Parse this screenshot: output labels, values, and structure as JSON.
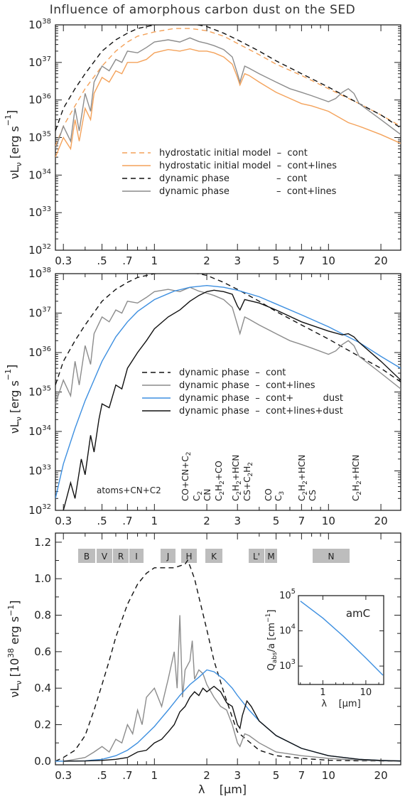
{
  "figure_title": "Influence of amorphous carbon dust on the SED",
  "colors": {
    "orange": "#f4a25a",
    "blue": "#3d8fe0",
    "gray": "#8c8c8c",
    "black": "#111111"
  },
  "chart_data": [
    {
      "type": "line",
      "panel": "top",
      "xscale": "log",
      "yscale": "log",
      "xlim": [
        0.27,
        26
      ],
      "ylim": [
        1e+32,
        1e+38
      ],
      "x_ticks": [
        "0.3",
        ".5",
        ".7",
        "1",
        "2",
        "3",
        "5",
        "7",
        "10",
        "20"
      ],
      "y_ticks": [
        "10^32",
        "10^33",
        "10^34",
        "10^35",
        "10^36",
        "10^37",
        "10^38"
      ],
      "ylabel": "νL_ν [erg s^-1]",
      "series": [
        {
          "name": "hydrostatic initial model - cont",
          "style": "dashed",
          "color": "#f4a25a",
          "x": [
            0.27,
            0.3,
            0.35,
            0.4,
            0.5,
            0.6,
            0.7,
            0.8,
            1.0,
            1.3,
            1.6,
            2.0,
            2.5,
            3.0,
            4.0,
            5.0,
            7.0,
            10,
            15,
            20,
            26
          ],
          "y": [
            6e+34,
            2e+35,
            7e+35,
            2e+36,
            8e+36,
            2e+37,
            3.5e+37,
            5e+37,
            6.5e+37,
            8e+37,
            8e+37,
            7e+37,
            5e+37,
            3.2e+37,
            1.6e+37,
            9e+36,
            4.5e+36,
            2e+36,
            8e+35,
            4e+35,
            2e+35
          ]
        },
        {
          "name": "hydrostatic initial model - cont+lines",
          "style": "solid",
          "color": "#f4a25a",
          "x": [
            0.27,
            0.3,
            0.33,
            0.35,
            0.37,
            0.4,
            0.43,
            0.45,
            0.5,
            0.55,
            0.6,
            0.65,
            0.7,
            0.8,
            0.9,
            1.0,
            1.2,
            1.4,
            1.6,
            1.8,
            2.0,
            2.2,
            2.5,
            2.8,
            3.0,
            3.1,
            3.3,
            3.5,
            4.0,
            5.0,
            6.0,
            7.0,
            8.0,
            10,
            13,
            15,
            20,
            26
          ],
          "y": [
            3e+34,
            1e+35,
            5e+34,
            3e+35,
            8e+34,
            6e+35,
            3e+35,
            1.5e+36,
            4e+36,
            3e+36,
            6e+36,
            5e+36,
            1e+37,
            1e+37,
            1.2e+37,
            1.8e+37,
            2.2e+37,
            2e+37,
            2.3e+37,
            2e+37,
            2e+37,
            1.8e+37,
            1.4e+37,
            9e+36,
            4e+36,
            2.5e+36,
            5e+36,
            4.5e+36,
            3e+36,
            1.6e+36,
            1.1e+36,
            8e+35,
            7e+35,
            5e+35,
            2.5e+35,
            2e+35,
            1.2e+35,
            7e+34
          ]
        },
        {
          "name": "dynamic phase - cont",
          "style": "dashed",
          "color": "#111111",
          "x": [
            0.27,
            0.3,
            0.35,
            0.4,
            0.5,
            0.6,
            0.7,
            0.8,
            1.0,
            1.3,
            1.6,
            2.0,
            2.5,
            3.0,
            4.0,
            5.0,
            7.0,
            10,
            15,
            20,
            26
          ],
          "y": [
            1.5e+35,
            6e+35,
            2e+36,
            5e+36,
            2e+37,
            4e+37,
            6e+37,
            8e+37,
            1e+38,
            1.1e+38,
            1.1e+38,
            9e+37,
            6e+37,
            4e+37,
            2e+37,
            1.1e+37,
            5e+36,
            2.2e+36,
            8e+35,
            4e+35,
            1.8e+35
          ]
        },
        {
          "name": "dynamic phase - cont+lines",
          "style": "solid",
          "color": "#8c8c8c",
          "x": [
            0.27,
            0.3,
            0.33,
            0.35,
            0.37,
            0.4,
            0.43,
            0.45,
            0.5,
            0.55,
            0.6,
            0.65,
            0.7,
            0.8,
            0.9,
            1.0,
            1.2,
            1.4,
            1.6,
            1.8,
            2.0,
            2.2,
            2.5,
            2.8,
            3.0,
            3.1,
            3.3,
            3.5,
            4.0,
            5.0,
            6.0,
            7.0,
            8.0,
            10,
            11,
            12,
            13,
            14,
            15,
            20,
            26
          ],
          "y": [
            5e+34,
            2e+35,
            8e+34,
            6e+35,
            1.5e+35,
            1.5e+36,
            5e+35,
            3e+36,
            8e+36,
            6e+36,
            1.2e+37,
            1e+37,
            2e+37,
            1.8e+37,
            2.5e+37,
            3.5e+37,
            4e+37,
            3.5e+37,
            4.5e+37,
            3.6e+37,
            3.2e+37,
            2.8e+37,
            2.2e+37,
            1.4e+37,
            5e+36,
            3e+36,
            8e+36,
            7e+36,
            5e+36,
            3e+36,
            2e+36,
            1.6e+36,
            1.3e+36,
            9e+35,
            1.1e+36,
            1.6e+36,
            2e+36,
            1.5e+36,
            8e+35,
            3e+35,
            1.2e+35
          ]
        }
      ],
      "legend": [
        "hydrostatic initial model  –  cont",
        "hydrostatic initial model  –  cont+lines",
        "dynamic phase                –  cont",
        "dynamic phase                –  cont+lines"
      ]
    },
    {
      "type": "line",
      "panel": "middle",
      "xscale": "log",
      "yscale": "log",
      "xlim": [
        0.27,
        26
      ],
      "ylim": [
        1e+32,
        1e+38
      ],
      "x_ticks": [
        "0.3",
        ".5",
        ".7",
        "1",
        "2",
        "3",
        "5",
        "7",
        "10",
        "20"
      ],
      "y_ticks": [
        "10^32",
        "10^33",
        "10^34",
        "10^35",
        "10^36",
        "10^37",
        "10^38"
      ],
      "ylabel": "νL_ν [erg s^-1]",
      "series": [
        {
          "name": "dynamic phase - cont",
          "style": "dashed",
          "color": "#111111",
          "x": [
            0.27,
            0.3,
            0.35,
            0.4,
            0.5,
            0.6,
            0.7,
            0.8,
            1.0,
            1.3,
            1.6,
            2.0,
            2.5,
            3.0,
            4.0,
            5.0,
            7.0,
            10,
            15,
            20,
            26
          ],
          "y": [
            1.5e+35,
            6e+35,
            2e+36,
            5e+36,
            2e+37,
            4e+37,
            6e+37,
            8e+37,
            1e+38,
            1.1e+38,
            1.1e+38,
            9e+37,
            6e+37,
            4e+37,
            2e+37,
            1.1e+37,
            5e+36,
            2.2e+36,
            8e+35,
            4e+35,
            1.8e+35
          ]
        },
        {
          "name": "dynamic phase - cont+lines",
          "style": "solid",
          "color": "#8c8c8c",
          "x": [
            0.27,
            0.3,
            0.33,
            0.35,
            0.37,
            0.4,
            0.43,
            0.45,
            0.5,
            0.55,
            0.6,
            0.65,
            0.7,
            0.8,
            0.9,
            1.0,
            1.2,
            1.4,
            1.6,
            1.8,
            2.0,
            2.2,
            2.5,
            2.8,
            3.0,
            3.1,
            3.3,
            3.5,
            4.0,
            5.0,
            6.0,
            7.0,
            8.0,
            10,
            11,
            12,
            13,
            14,
            15,
            20,
            26
          ],
          "y": [
            5e+34,
            2e+35,
            8e+34,
            6e+35,
            1.5e+35,
            1.5e+36,
            5e+35,
            3e+36,
            8e+36,
            6e+36,
            1.2e+37,
            1e+37,
            2e+37,
            1.8e+37,
            2.5e+37,
            3.5e+37,
            4e+37,
            3.5e+37,
            4.5e+37,
            3.6e+37,
            3.2e+37,
            2.8e+37,
            2.2e+37,
            1.4e+37,
            5e+36,
            3e+36,
            8e+36,
            7e+36,
            5e+36,
            3e+36,
            2e+36,
            1.6e+36,
            1.3e+36,
            9e+35,
            1.1e+36,
            1.6e+36,
            2e+36,
            1.5e+36,
            8e+35,
            3e+35,
            1.2e+35
          ]
        },
        {
          "name": "dynamic phase - cont+ dust",
          "style": "solid",
          "color": "#3d8fe0",
          "x": [
            0.27,
            0.3,
            0.35,
            0.4,
            0.5,
            0.6,
            0.7,
            0.8,
            1.0,
            1.3,
            1.6,
            2.0,
            2.5,
            3.0,
            4.0,
            5.0,
            7.0,
            10,
            15,
            20,
            26
          ],
          "y": [
            2e+32,
            1.5e+33,
            1.2e+34,
            6e+34,
            6e+35,
            2.5e+36,
            6e+36,
            1.1e+37,
            2.2e+37,
            3.6e+37,
            4.5e+37,
            5e+37,
            4.5e+37,
            3.8e+37,
            2.6e+37,
            1.7e+37,
            9e+36,
            4.5e+36,
            1.8e+36,
            8e+35,
            4e+35
          ]
        },
        {
          "name": "dynamic phase - cont+lines+dust",
          "style": "solid",
          "color": "#111111",
          "x": [
            0.3,
            0.33,
            0.35,
            0.38,
            0.4,
            0.43,
            0.45,
            0.48,
            0.5,
            0.55,
            0.6,
            0.65,
            0.7,
            0.8,
            0.9,
            1.0,
            1.2,
            1.4,
            1.6,
            1.8,
            2.0,
            2.2,
            2.5,
            2.8,
            3.0,
            3.1,
            3.3,
            4.0,
            5.0,
            7.0,
            10,
            12,
            13,
            14,
            15,
            20,
            26
          ],
          "y": [
            1e+32,
            5e+32,
            2e+32,
            2e+33,
            8e+32,
            8e+33,
            3e+33,
            2e+34,
            5e+34,
            4e+34,
            1.5e+35,
            1.2e+35,
            4e+35,
            1e+36,
            2e+36,
            4e+36,
            8e+36,
            1.2e+37,
            2e+37,
            2.8e+37,
            3.5e+37,
            3.8e+37,
            3.5e+37,
            3e+37,
            1.5e+37,
            1.2e+37,
            2.2e+37,
            1.8e+37,
            1.2e+37,
            6e+36,
            3.5e+36,
            2.8e+36,
            3e+36,
            2.5e+36,
            1.8e+36,
            6e+35,
            2e+35
          ]
        }
      ],
      "legend": [
        "dynamic phase  –  cont",
        "dynamic phase  –  cont+lines",
        "dynamic phase  –  cont+          dust",
        "dynamic phase  –  cont+lines+dust"
      ],
      "annotations": [
        "atoms+CN+C2",
        "CO+CN+C2",
        "C2",
        "CN",
        "C2H2+CO",
        "C2H2+HCN",
        "CS+C2H2",
        "CO",
        "C3",
        "C2H2+HCN",
        "CS",
        "C2H2+HCN"
      ]
    },
    {
      "type": "line",
      "panel": "bottom",
      "xscale": "log",
      "yscale": "linear",
      "xlim": [
        0.27,
        26
      ],
      "ylim": [
        -0.02,
        1.25
      ],
      "x_ticks": [
        "0.3",
        ".5",
        ".7",
        "1",
        "2",
        "3",
        "5",
        "7",
        "10",
        "20"
      ],
      "y_ticks": [
        "0.0",
        "0.2",
        "0.4",
        "0.6",
        "0.8",
        "1.0",
        "1.2"
      ],
      "xlabel": "λ [μm]",
      "ylabel": "νL_ν [10^38 erg s^-1]",
      "bands": [
        "B",
        "V",
        "R",
        "I",
        "J",
        "H",
        "K",
        "L'",
        "M",
        "N"
      ],
      "series": [
        {
          "name": "dynamic phase - cont",
          "style": "dashed",
          "color": "#111111",
          "x": [
            0.27,
            0.3,
            0.35,
            0.4,
            0.45,
            0.5,
            0.55,
            0.6,
            0.7,
            0.8,
            0.9,
            1.0,
            1.1,
            1.3,
            1.4,
            1.5,
            1.55,
            1.6,
            1.7,
            1.8,
            2.0,
            2.2,
            2.5,
            2.8,
            3.0,
            4.0,
            5.0,
            7.0,
            10,
            15,
            20,
            26
          ],
          "y": [
            0.0,
            0.02,
            0.06,
            0.14,
            0.28,
            0.42,
            0.55,
            0.68,
            0.86,
            0.97,
            1.03,
            1.06,
            1.06,
            1.06,
            1.07,
            1.08,
            1.1,
            1.07,
            1.0,
            0.9,
            0.72,
            0.55,
            0.38,
            0.24,
            0.16,
            0.06,
            0.03,
            0.015,
            0.005,
            0.002,
            0.001,
            0.0
          ]
        },
        {
          "name": "dynamic phase - cont+lines",
          "style": "solid",
          "color": "#8c8c8c",
          "x": [
            0.3,
            0.35,
            0.4,
            0.45,
            0.5,
            0.55,
            0.6,
            0.65,
            0.7,
            0.75,
            0.8,
            0.85,
            0.9,
            1.0,
            1.1,
            1.2,
            1.3,
            1.35,
            1.4,
            1.45,
            1.5,
            1.6,
            1.65,
            1.7,
            1.8,
            1.9,
            2.0,
            2.2,
            2.4,
            2.6,
            2.8,
            3.0,
            3.1,
            3.3,
            3.5,
            4.0,
            5.0,
            7.0,
            10,
            15,
            20,
            26
          ],
          "y": [
            0.0,
            0.01,
            0.02,
            0.05,
            0.08,
            0.05,
            0.12,
            0.1,
            0.2,
            0.15,
            0.28,
            0.2,
            0.35,
            0.4,
            0.3,
            0.45,
            0.6,
            0.4,
            0.8,
            0.35,
            0.5,
            0.55,
            0.66,
            0.45,
            0.5,
            0.48,
            0.42,
            0.35,
            0.3,
            0.28,
            0.2,
            0.1,
            0.08,
            0.15,
            0.14,
            0.1,
            0.05,
            0.03,
            0.015,
            0.005,
            0.002,
            0.0
          ]
        },
        {
          "name": "dynamic phase - cont+ dust",
          "style": "solid",
          "color": "#3d8fe0",
          "x": [
            0.27,
            0.3,
            0.4,
            0.5,
            0.6,
            0.7,
            0.8,
            1.0,
            1.2,
            1.4,
            1.6,
            1.8,
            2.0,
            2.2,
            2.5,
            2.8,
            3.0,
            3.5,
            4.0,
            5.0,
            7.0,
            10,
            15,
            20,
            26
          ],
          "y": [
            0.0,
            0.0,
            0.002,
            0.01,
            0.03,
            0.06,
            0.1,
            0.19,
            0.28,
            0.36,
            0.42,
            0.46,
            0.5,
            0.49,
            0.45,
            0.4,
            0.36,
            0.28,
            0.22,
            0.14,
            0.07,
            0.03,
            0.01,
            0.004,
            0.001
          ]
        },
        {
          "name": "dynamic phase - cont+lines+dust",
          "style": "solid",
          "color": "#111111",
          "x": [
            0.3,
            0.4,
            0.5,
            0.6,
            0.7,
            0.8,
            0.9,
            1.0,
            1.1,
            1.2,
            1.3,
            1.4,
            1.5,
            1.6,
            1.7,
            1.8,
            1.9,
            2.0,
            2.2,
            2.4,
            2.6,
            2.8,
            3.0,
            3.1,
            3.2,
            3.4,
            3.6,
            4.0,
            5.0,
            7.0,
            10,
            15,
            20,
            26
          ],
          "y": [
            0.0,
            0.001,
            0.004,
            0.01,
            0.02,
            0.05,
            0.06,
            0.1,
            0.12,
            0.16,
            0.2,
            0.27,
            0.3,
            0.35,
            0.38,
            0.36,
            0.4,
            0.38,
            0.41,
            0.38,
            0.32,
            0.3,
            0.2,
            0.18,
            0.25,
            0.33,
            0.3,
            0.22,
            0.14,
            0.07,
            0.03,
            0.01,
            0.004,
            0.001
          ]
        }
      ]
    },
    {
      "type": "line",
      "panel": "inset",
      "xscale": "log",
      "yscale": "log",
      "xlim": [
        0.27,
        26
      ],
      "ylim": [
        300,
        100000.0
      ],
      "x_ticks": [
        "1",
        "10"
      ],
      "y_ticks": [
        "10^3",
        "10^4",
        "10^5"
      ],
      "xlabel": "λ [μm]",
      "ylabel": "Q_abs/a [cm^-1]",
      "label": "amC",
      "series": [
        {
          "name": "amC",
          "style": "solid",
          "color": "#3d8fe0",
          "x": [
            0.3,
            1.0,
            3.0,
            10.0,
            25.0
          ],
          "y": [
            70000,
            23000,
            7000,
            1700,
            550
          ]
        }
      ]
    }
  ]
}
